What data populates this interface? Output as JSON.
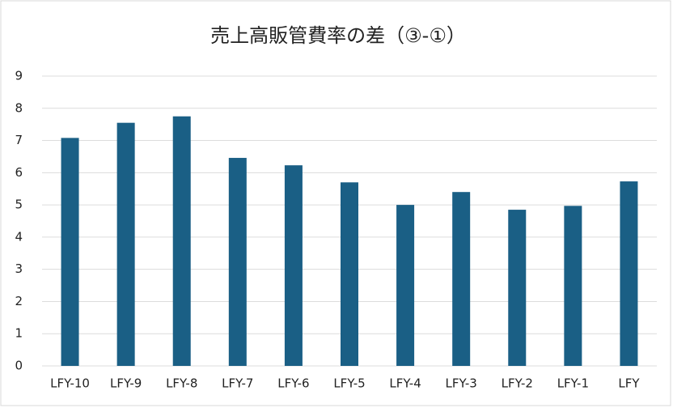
{
  "chart_data": {
    "type": "bar",
    "title": "売上高販管費率の差（③-①）",
    "categories": [
      "LFY-10",
      "LFY-9",
      "LFY-8",
      "LFY-7",
      "LFY-6",
      "LFY-5",
      "LFY-4",
      "LFY-3",
      "LFY-2",
      "LFY-1",
      "LFY"
    ],
    "values": [
      7.08,
      7.55,
      7.75,
      6.46,
      6.23,
      5.7,
      5.0,
      5.4,
      4.85,
      4.97,
      5.73
    ],
    "color": "#1a5f85",
    "ylim": [
      0,
      9
    ],
    "yticks": [
      0,
      1,
      2,
      3,
      4,
      5,
      6,
      7,
      8,
      9
    ],
    "grid": true
  }
}
